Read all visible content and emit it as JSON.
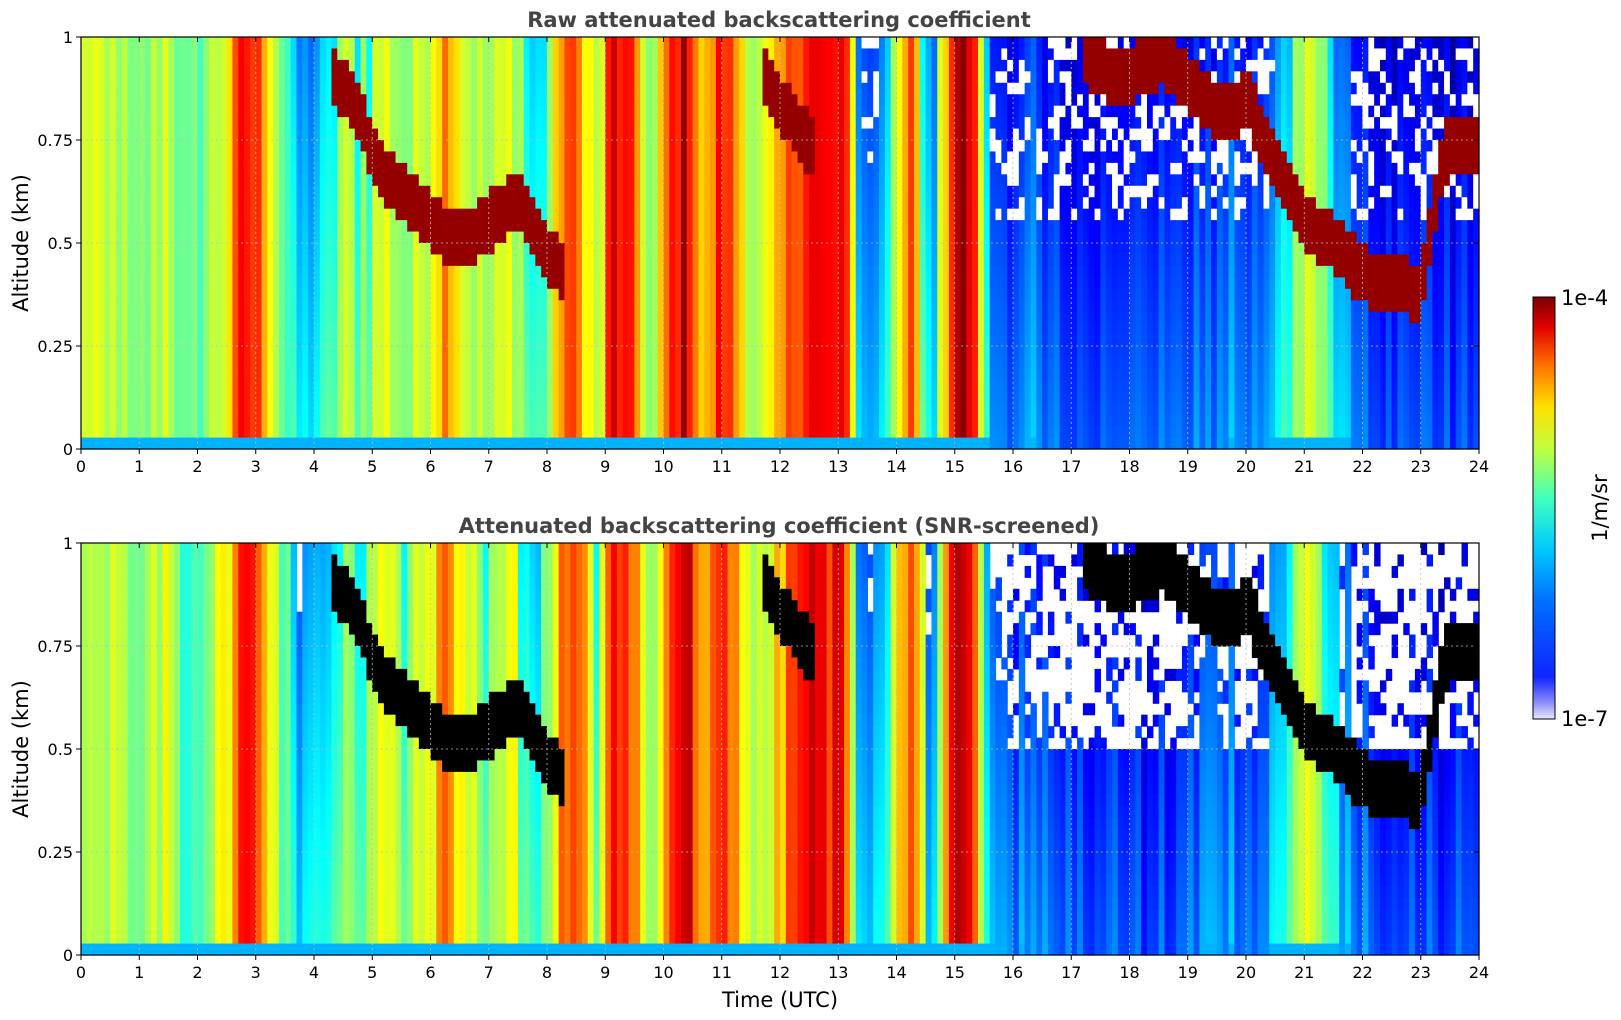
{
  "chart_data": [
    {
      "type": "heatmap",
      "title": "Raw attenuated backscattering coefficient",
      "xlabel": "",
      "ylabel": "Altitude (km)",
      "xlim": [
        0,
        24
      ],
      "ylim": [
        0,
        1
      ],
      "x_ticks": [
        "0",
        "1",
        "2",
        "3",
        "4",
        "5",
        "6",
        "7",
        "8",
        "9",
        "10",
        "11",
        "12",
        "13",
        "14",
        "15",
        "16",
        "17",
        "18",
        "19",
        "20",
        "21",
        "22",
        "23",
        "24"
      ],
      "y_ticks": [
        "0",
        "0.25",
        "0.5",
        "0.75",
        "1"
      ],
      "grid": true,
      "screened": false
    },
    {
      "type": "heatmap",
      "title": "Attenuated backscattering coefficient (SNR-screened)",
      "xlabel": "Time (UTC)",
      "ylabel": "Altitude (km)",
      "xlim": [
        0,
        24
      ],
      "ylim": [
        0,
        1
      ],
      "x_ticks": [
        "0",
        "1",
        "2",
        "3",
        "4",
        "5",
        "6",
        "7",
        "8",
        "9",
        "10",
        "11",
        "12",
        "13",
        "14",
        "15",
        "16",
        "17",
        "18",
        "19",
        "20",
        "21",
        "22",
        "23",
        "24"
      ],
      "y_ticks": [
        "0",
        "0.25",
        "0.5",
        "0.75",
        "1"
      ],
      "grid": true,
      "screened": true
    }
  ],
  "colorbar": {
    "label": "1/m/sr",
    "max_label": "1e-4",
    "min_label": "1e-7",
    "scale": "log",
    "colormap": "jet",
    "range": [
      1e-07,
      0.0001
    ]
  },
  "colors": {
    "title": "#444444",
    "grid": "#bfbfbf",
    "axis": "#000000",
    "saturated": "#000000",
    "low": "#1a35f0"
  }
}
